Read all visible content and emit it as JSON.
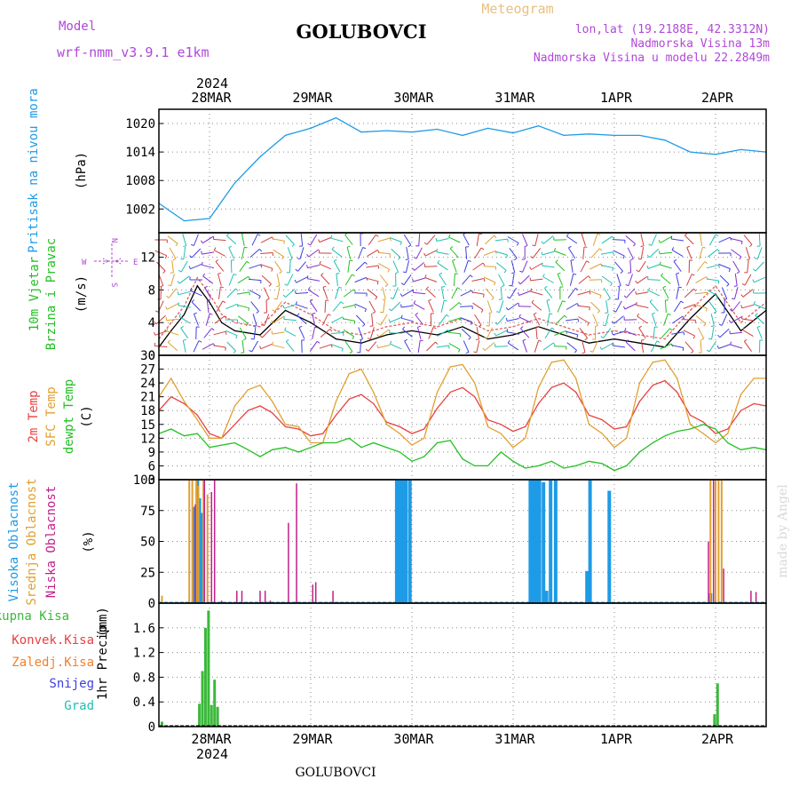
{
  "header": {
    "model_label": "Model",
    "model_name": "wrf-nmm_v3.9.1 e1km",
    "location": "GOLUBOVCI",
    "product": "Meteogram",
    "lonlat": "lon,lat (19.2188E, 42.3312N)",
    "elevation": "Nadmorska Visina 13m",
    "model_elevation": "Nadmorska Visina u modelu 22.2849m"
  },
  "footer": {
    "location": "GOLUBOVCI",
    "credit": "made by Angel"
  },
  "colors": {
    "pressure": "#1e9be6",
    "temp_2m": "#e84040",
    "temp_sfc": "#e0a030",
    "dewpoint": "#22c022",
    "cloud_high": "#1e9be6",
    "cloud_mid": "#e0a030",
    "cloud_low": "#c0208a",
    "precip_total": "#3cb83c",
    "precip_conv": "#e84040",
    "precip_freezing": "#f08030",
    "precip_snow": "#4040e0",
    "precip_hail": "#20c0b0",
    "wind_legend": "#b048d8"
  },
  "time_axis": {
    "year_label": "2024",
    "day_labels": [
      "28MAR",
      "29MAR",
      "30MAR",
      "31MAR",
      "1APR",
      "2APR"
    ]
  },
  "chart_data": [
    {
      "type": "line",
      "title": "",
      "ylabel": "Pritisak na nivou mora",
      "yunit": "(hPa)",
      "ylim": [
        997,
        1023
      ],
      "yticks": [
        "1002",
        "1008",
        "1014",
        "1020"
      ],
      "grid": true,
      "x_days": [
        -0.5,
        -0.25,
        0,
        0.25,
        0.5,
        0.75,
        1.0,
        1.25,
        1.5,
        1.75,
        2.0,
        2.25,
        2.5,
        2.75,
        3.0,
        3.25,
        3.5,
        3.75,
        4.0,
        4.25,
        4.5,
        4.75,
        5.0,
        5.25,
        5.5
      ],
      "series": [
        {
          "values": [
            1003.2,
            999.5,
            1000.0,
            1007.5,
            1013.0,
            1017.5,
            1019.0,
            1021.2,
            1018.2,
            1018.5,
            1018.2,
            1018.8,
            1017.5,
            1019.0,
            1018.0,
            1019.5,
            1017.5,
            1017.8,
            1017.5,
            1017.5,
            1016.5,
            1014.0,
            1013.5,
            1014.5,
            1014.0
          ]
        }
      ]
    },
    {
      "type": "line",
      "title": "",
      "ylabel": [
        "10m Vjetar",
        "Brzina i Pravac"
      ],
      "yunit": "(m/s)",
      "ylim": [
        0,
        15
      ],
      "yticks": [
        "0",
        "4",
        "8",
        "12"
      ],
      "compass": [
        "N",
        "W",
        "E",
        "S"
      ],
      "grid": true,
      "x_days": [
        -0.5,
        -0.38,
        -0.25,
        -0.12,
        0,
        0.12,
        0.25,
        0.5,
        0.75,
        1.0,
        1.25,
        1.5,
        1.75,
        2.0,
        2.25,
        2.5,
        2.75,
        3.0,
        3.25,
        3.5,
        3.75,
        4.0,
        4.25,
        4.5,
        4.75,
        5.0,
        5.25,
        5.5
      ],
      "series": [
        {
          "values": [
            1.0,
            3.0,
            5.0,
            8.5,
            6.5,
            4.0,
            3.0,
            2.5,
            5.5,
            4.0,
            2.0,
            1.5,
            2.5,
            3.0,
            2.5,
            3.5,
            2.0,
            2.5,
            3.5,
            2.5,
            1.5,
            2.0,
            1.5,
            1.0,
            4.5,
            7.5,
            3.0,
            5.5
          ]
        },
        {
          "values": [
            2.0,
            4.0,
            6.0,
            9.5,
            7.5,
            5.0,
            4.0,
            3.5,
            6.5,
            5.0,
            3.0,
            2.5,
            3.5,
            4.0,
            3.5,
            4.5,
            3.0,
            3.5,
            4.5,
            3.5,
            2.5,
            3.0,
            2.5,
            2.0,
            5.5,
            8.5,
            4.0,
            6.5
          ]
        }
      ]
    },
    {
      "type": "line",
      "title": "",
      "ylabel": [
        "2m Temp",
        "SFC Temp",
        "dewpt Temp"
      ],
      "yunit": "(C)",
      "ylim": [
        3,
        30
      ],
      "yticks": [
        "3",
        "6",
        "9",
        "12",
        "15",
        "18",
        "21",
        "24",
        "27",
        "30"
      ],
      "grid": true,
      "x_days": [
        -0.5,
        -0.38,
        -0.25,
        -0.12,
        0,
        0.12,
        0.25,
        0.38,
        0.5,
        0.62,
        0.75,
        0.88,
        1.0,
        1.12,
        1.25,
        1.38,
        1.5,
        1.62,
        1.75,
        1.88,
        2.0,
        2.12,
        2.25,
        2.38,
        2.5,
        2.62,
        2.75,
        2.88,
        3.0,
        3.12,
        3.25,
        3.38,
        3.5,
        3.62,
        3.75,
        3.88,
        4.0,
        4.12,
        4.25,
        4.38,
        4.5,
        4.62,
        4.75,
        4.88,
        5.0,
        5.12,
        5.25,
        5.38,
        5.5
      ],
      "series": [
        {
          "name": "2m Temp",
          "values": [
            18.0,
            21.0,
            19.5,
            17.0,
            13.0,
            12.0,
            15.0,
            18.0,
            19.0,
            17.5,
            14.5,
            14.0,
            12.5,
            13.0,
            17.0,
            20.5,
            21.5,
            19.5,
            15.5,
            14.5,
            13.0,
            14.0,
            18.5,
            22.0,
            23.0,
            21.0,
            16.0,
            15.0,
            13.5,
            14.5,
            19.5,
            23.0,
            24.0,
            22.0,
            17.0,
            16.0,
            14.0,
            14.5,
            20.0,
            23.5,
            24.5,
            22.0,
            17.0,
            15.5,
            13.0,
            14.0,
            18.0,
            19.5,
            19.0
          ]
        },
        {
          "name": "SFC Temp",
          "values": [
            21.0,
            25.0,
            20.0,
            16.0,
            12.0,
            12.0,
            19.0,
            22.5,
            23.5,
            20.0,
            15.0,
            14.5,
            11.0,
            11.0,
            20.0,
            26.0,
            27.0,
            22.0,
            15.0,
            13.0,
            10.5,
            12.0,
            22.0,
            27.5,
            28.0,
            24.0,
            14.5,
            13.0,
            10.0,
            12.0,
            23.0,
            28.5,
            29.0,
            25.0,
            15.0,
            13.0,
            10.0,
            12.0,
            24.0,
            28.5,
            29.0,
            25.0,
            15.0,
            13.0,
            11.0,
            13.0,
            21.5,
            25.0,
            25.0
          ]
        },
        {
          "name": "dewpt Temp",
          "values": [
            13.0,
            14.0,
            12.5,
            13.0,
            10.0,
            10.5,
            11.0,
            9.5,
            8.0,
            9.5,
            10.0,
            9.0,
            10.0,
            11.0,
            11.0,
            12.0,
            10.0,
            11.0,
            10.0,
            9.0,
            7.0,
            8.0,
            11.0,
            11.5,
            7.5,
            6.0,
            6.0,
            9.0,
            7.0,
            5.5,
            6.0,
            7.0,
            5.5,
            6.0,
            7.0,
            6.5,
            5.0,
            6.0,
            9.0,
            11.0,
            12.5,
            13.5,
            14.0,
            15.0,
            14.0,
            11.0,
            9.5,
            10.0,
            9.5
          ]
        }
      ]
    },
    {
      "type": "bar",
      "title": "",
      "ylabel": [
        "Visoka Oblacnost",
        "Srednja Oblacnost",
        "Niska Oblacnost"
      ],
      "yunit": "(%)",
      "ylim": [
        0,
        100
      ],
      "yticks": [
        "0",
        "25",
        "50",
        "75",
        "100"
      ],
      "grid": true,
      "series": [
        {
          "name": "Visoka Oblacnost",
          "x_days": [
            -0.15,
            -0.12,
            -0.1,
            -0.08,
            1.85,
            1.88,
            1.91,
            1.94,
            1.98,
            3.17,
            3.2,
            3.23,
            3.26,
            3.3,
            3.33,
            3.37,
            3.42,
            3.73,
            3.76,
            3.95,
            4.95
          ],
          "values": [
            78,
            100,
            85,
            73,
            100,
            100,
            100,
            100,
            100,
            100,
            100,
            100,
            100,
            98,
            10,
            100,
            100,
            26,
            100,
            91,
            8
          ]
        },
        {
          "name": "Srednja Oblacnost",
          "x_days": [
            -0.47,
            -0.2,
            -0.17,
            -0.13,
            -0.11,
            -0.06,
            -0.02,
            4.95,
            5.0,
            5.03,
            5.06
          ],
          "values": [
            6,
            100,
            100,
            100,
            95,
            100,
            88,
            100,
            100,
            100,
            100
          ]
        },
        {
          "name": "Niska Oblacnost",
          "x_days": [
            -0.14,
            -0.05,
            0.02,
            0.05,
            0.12,
            0.27,
            0.32,
            0.5,
            0.55,
            0.6,
            0.78,
            0.86,
            1.02,
            1.05,
            1.22,
            4.93,
            4.98,
            5.08,
            5.35,
            5.4
          ],
          "values": [
            80,
            100,
            90,
            100,
            2,
            10,
            10,
            10,
            10,
            2,
            65,
            97,
            15,
            17,
            10,
            50,
            100,
            28,
            10,
            9
          ]
        }
      ]
    },
    {
      "type": "bar",
      "title": "",
      "ylabel": "1hr Precip",
      "yunit": "(mm)",
      "ylim": [
        0,
        2.0
      ],
      "yticks": [
        "0",
        "0.4",
        "0.8",
        "1.2",
        "1.6"
      ],
      "grid": true,
      "legend": [
        "Ukupna Kisa",
        "Konvek.Kisa",
        "Zaledj.Kisa",
        "Snijeg",
        "Grad"
      ],
      "series": [
        {
          "name": "Ukupna Kisa",
          "x_days": [
            -0.47,
            -0.1,
            -0.07,
            -0.04,
            -0.01,
            0.02,
            0.05,
            0.08,
            4.99,
            5.02
          ],
          "values": [
            0.08,
            0.37,
            0.9,
            1.6,
            1.88,
            0.35,
            0.76,
            0.32,
            0.2,
            0.7
          ]
        }
      ]
    }
  ]
}
